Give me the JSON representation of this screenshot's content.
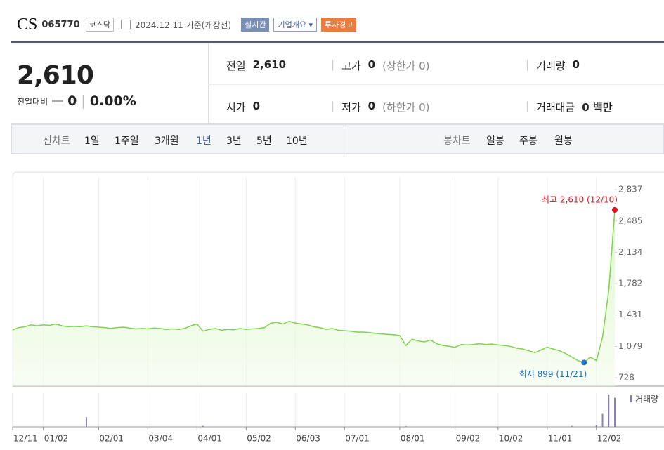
{
  "header": {
    "name": "CS",
    "code": "065770",
    "market": "코스닥",
    "date": "2024.12.11 기준(개장전)",
    "buttons": [
      "실시간",
      "기업개요",
      "투자경고"
    ]
  },
  "summary": {
    "price": "2,610",
    "change_label": "전일대비",
    "change": "0",
    "change_rate": "0.00%",
    "items": [
      {
        "label": "전일",
        "value": "2,610"
      },
      {
        "label": "고가",
        "value": "0",
        "note": "(상한가 0)"
      },
      {
        "label": "거래량",
        "value": "0"
      },
      {
        "label": "시가",
        "value": "0"
      },
      {
        "label": "저가",
        "value": "0",
        "note": "(하한가 0)"
      },
      {
        "label": "거래대금",
        "value": "0 백만"
      }
    ]
  },
  "tabs": {
    "line_label": "선차트",
    "line": [
      "1일",
      "1주일",
      "3개월",
      "1년",
      "3년",
      "5년",
      "10년"
    ],
    "candle_label": "봉차트",
    "candle": [
      "일봉",
      "주봉",
      "월봉"
    ]
  },
  "chart_data": {
    "type": "line",
    "color": "#7ed34f",
    "categories": [
      "12/11",
      null,
      null,
      null,
      null,
      "01/02",
      null,
      null,
      null,
      null,
      null,
      null,
      null,
      null,
      "02/01",
      null,
      null,
      null,
      null,
      null,
      null,
      null,
      "03/04",
      null,
      null,
      null,
      null,
      null,
      null,
      null,
      "04/01",
      null,
      null,
      null,
      null,
      null,
      null,
      null,
      "05/02",
      null,
      null,
      null,
      null,
      null,
      null,
      null,
      "06/03",
      null,
      null,
      null,
      null,
      null,
      null,
      null,
      "07/01",
      null,
      null,
      null,
      null,
      null,
      null,
      null,
      null,
      "08/01",
      null,
      null,
      null,
      null,
      null,
      null,
      null,
      null,
      "09/02",
      null,
      null,
      null,
      null,
      null,
      null,
      "10/02",
      null,
      null,
      null,
      null,
      null,
      null,
      null,
      "11/01",
      null,
      null,
      null,
      null,
      null,
      null,
      null,
      "12/02",
      null,
      null,
      null
    ],
    "values": [
      1263,
      1290,
      1300,
      1320,
      1310,
      1320,
      1315,
      1330,
      1310,
      1300,
      1305,
      1300,
      1310,
      1300,
      1295,
      1290,
      1280,
      1290,
      1295,
      1285,
      1275,
      1280,
      1275,
      1285,
      1280,
      1270,
      1275,
      1270,
      1280,
      1310,
      1330,
      1250,
      1270,
      1280,
      1260,
      1270,
      1265,
      1280,
      1270,
      1275,
      1280,
      1290,
      1340,
      1350,
      1330,
      1360,
      1340,
      1330,
      1320,
      1300,
      1290,
      1270,
      1280,
      1260,
      1255,
      1250,
      1240,
      1240,
      1235,
      1225,
      1220,
      1215,
      1210,
      1200,
      1090,
      1160,
      1140,
      1130,
      1150,
      1110,
      1090,
      1080,
      1070,
      1100,
      1095,
      1100,
      1110,
      1100,
      1105,
      1095,
      1090,
      1080,
      1060,
      1050,
      1030,
      1010,
      1040,
      1070,
      1050,
      1030,
      1000,
      960,
      920,
      899,
      960,
      920,
      1180,
      1700,
      2610
    ],
    "ylim": [
      634,
      2853
    ],
    "yticks": [
      728,
      {
        "value": 1079,
        "label": "1,079"
      },
      {
        "value": 1431,
        "label": "1,431"
      },
      {
        "value": 1782,
        "label": "1,782"
      },
      {
        "value": 2134,
        "label": "2,134"
      },
      {
        "value": 2485,
        "label": "2,485"
      },
      {
        "value": 2837,
        "label": "2,837"
      }
    ],
    "annotations": {
      "high": "최고 2,610 (12/10)",
      "low": "최저 899 (11/21)"
    },
    "volume": {
      "name": "거래량",
      "color": "#8a7fb8",
      "values": [
        0,
        0,
        0,
        0,
        0,
        0,
        0,
        0,
        0,
        0,
        0,
        0,
        30,
        0,
        0,
        0,
        0,
        0,
        0,
        0,
        0,
        0,
        0,
        0,
        0,
        0,
        0,
        0,
        0,
        0,
        0,
        3,
        0,
        0,
        0,
        0,
        0,
        0,
        0,
        0,
        0,
        0,
        0,
        0,
        0,
        0,
        0,
        0,
        0,
        0,
        0,
        0,
        0,
        0,
        0,
        0,
        0,
        0,
        0,
        0,
        0,
        0,
        0,
        0,
        2,
        0,
        0,
        0,
        0,
        0,
        0,
        0,
        0,
        0,
        0,
        0,
        0,
        0,
        0,
        0,
        0,
        0,
        0,
        0,
        0,
        0,
        0,
        0,
        0,
        0,
        0,
        3,
        0,
        0,
        0,
        5,
        40,
        100,
        90
      ]
    }
  }
}
